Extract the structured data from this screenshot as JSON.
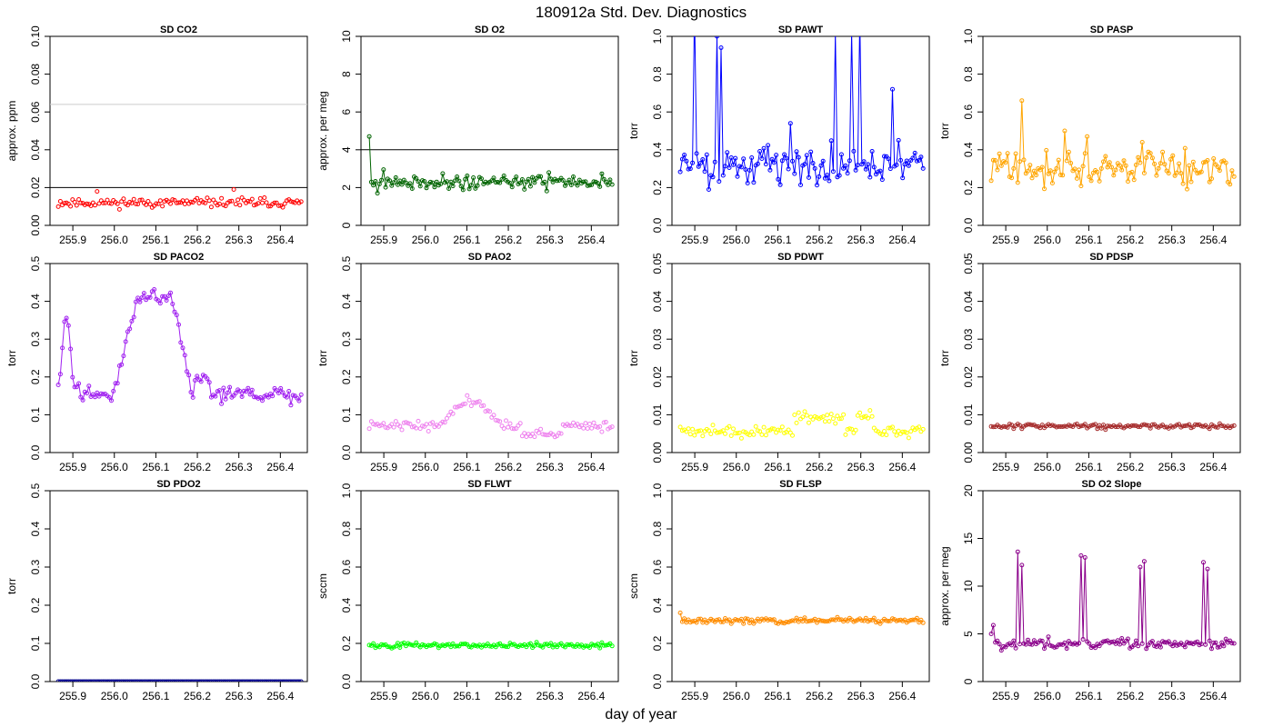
{
  "figure": {
    "title": "180912a   Std. Dev. Diagnostics",
    "xlabel": "day of year"
  },
  "chart_data": [
    {
      "type": "scatter",
      "title": "SD CO2",
      "ylabel": "approx. ppm",
      "color": "#ff0000",
      "xlim": [
        255.845,
        256.465
      ],
      "ylim": [
        0,
        0.1
      ],
      "yticks": [
        0,
        0.02,
        0.04,
        0.06,
        0.08,
        0.1
      ],
      "ytick_labels": [
        "0.00",
        "0.02",
        "0.04",
        "0.06",
        "0.08",
        "0.10"
      ],
      "hlines": [
        {
          "y": 0.02,
          "color": "#000000"
        },
        {
          "y": 0.064,
          "color": "#cccccc"
        }
      ],
      "connect": false,
      "gen": {
        "n": 120,
        "x0": 255.865,
        "x1": 256.45,
        "kind": "flat",
        "base": 0.012,
        "amp": 0.002,
        "seed": 11,
        "extras": [
          [
            255.96,
            0.018
          ],
          [
            256.29,
            0.019
          ]
        ]
      }
    },
    {
      "type": "scatter",
      "title": "SD O2",
      "ylabel": "approx. per meg",
      "color": "#006400",
      "xlim": [
        255.845,
        256.465
      ],
      "ylim": [
        0,
        10
      ],
      "yticks": [
        0,
        2,
        4,
        6,
        8,
        10
      ],
      "ytick_labels": [
        "0",
        "2",
        "4",
        "6",
        "8",
        "10"
      ],
      "hlines": [
        {
          "y": 4,
          "color": "#000000"
        }
      ],
      "connect": true,
      "gen": {
        "n": 120,
        "x0": 255.865,
        "x1": 256.45,
        "kind": "flat",
        "base": 2.3,
        "amp": 0.3,
        "seed": 21,
        "first": 4.7,
        "extras": [
          [
            255.885,
            1.7
          ],
          [
            255.9,
            2.95
          ]
        ]
      }
    },
    {
      "type": "line",
      "title": "SD PAWT",
      "ylabel": "torr",
      "color": "#0000ff",
      "xlim": [
        255.845,
        256.465
      ],
      "ylim": [
        0,
        1
      ],
      "yticks": [
        0,
        0.2,
        0.4,
        0.6,
        0.8,
        1
      ],
      "ytick_labels": [
        "0.0",
        "0.2",
        "0.4",
        "0.6",
        "0.8",
        "1.0"
      ],
      "hlines": [],
      "connect": true,
      "gen": {
        "n": 120,
        "x0": 255.865,
        "x1": 256.45,
        "kind": "spiky",
        "base": 0.32,
        "amp": 0.09,
        "seed": 31,
        "spikes": [
          [
            255.9,
            1.15
          ],
          [
            255.955,
            1.0
          ],
          [
            255.965,
            0.94
          ],
          [
            256.13,
            0.54
          ],
          [
            256.24,
            1.02
          ],
          [
            256.28,
            1.02
          ],
          [
            256.3,
            1.1
          ],
          [
            256.375,
            0.72
          ],
          [
            256.39,
            0.45
          ]
        ]
      }
    },
    {
      "type": "line",
      "title": "SD PASP",
      "ylabel": "torr",
      "color": "#ffa500",
      "xlim": [
        255.845,
        256.465
      ],
      "ylim": [
        0,
        1
      ],
      "yticks": [
        0,
        0.2,
        0.4,
        0.6,
        0.8,
        1
      ],
      "ytick_labels": [
        "0.0",
        "0.2",
        "0.4",
        "0.6",
        "0.8",
        "1.0"
      ],
      "hlines": [],
      "connect": true,
      "gen": {
        "n": 120,
        "x0": 255.865,
        "x1": 256.45,
        "kind": "spiky",
        "base": 0.3,
        "amp": 0.08,
        "seed": 41,
        "spikes": [
          [
            255.94,
            0.66
          ],
          [
            256.04,
            0.5
          ],
          [
            256.095,
            0.47
          ],
          [
            256.23,
            0.44
          ]
        ]
      }
    },
    {
      "type": "line",
      "title": "SD PACO2",
      "ylabel": "torr",
      "color": "#a020f0",
      "xlim": [
        255.845,
        256.465
      ],
      "ylim": [
        0,
        0.5
      ],
      "yticks": [
        0,
        0.1,
        0.2,
        0.3,
        0.4,
        0.5
      ],
      "ytick_labels": [
        "0.0",
        "0.1",
        "0.2",
        "0.3",
        "0.4",
        "0.5"
      ],
      "hlines": [],
      "connect": true,
      "gen": {
        "n": 120,
        "x0": 255.865,
        "x1": 256.45,
        "kind": "paco2",
        "base": 0.15,
        "amp": 0.015,
        "seed": 51
      }
    },
    {
      "type": "scatter",
      "title": "SD PAO2",
      "ylabel": "torr",
      "color": "#ee82ee",
      "xlim": [
        255.845,
        256.465
      ],
      "ylim": [
        0,
        0.5
      ],
      "yticks": [
        0,
        0.1,
        0.2,
        0.3,
        0.4,
        0.5
      ],
      "ytick_labels": [
        "0.0",
        "0.1",
        "0.2",
        "0.3",
        "0.4",
        "0.5"
      ],
      "hlines": [],
      "connect": false,
      "gen": {
        "n": 120,
        "x0": 255.865,
        "x1": 256.45,
        "kind": "pao2",
        "base": 0.07,
        "amp": 0.01,
        "seed": 61
      }
    },
    {
      "type": "scatter",
      "title": "SD PDWT",
      "ylabel": "torr",
      "color": "#ffff00",
      "xlim": [
        255.845,
        256.465
      ],
      "ylim": [
        0,
        0.05
      ],
      "yticks": [
        0,
        0.01,
        0.02,
        0.03,
        0.04,
        0.05
      ],
      "ytick_labels": [
        "0.00",
        "0.01",
        "0.02",
        "0.03",
        "0.04",
        "0.05"
      ],
      "hlines": [],
      "connect": false,
      "gen": {
        "n": 120,
        "x0": 255.865,
        "x1": 256.45,
        "kind": "pdwt",
        "base": 0.0055,
        "amp": 0.0008,
        "seed": 71
      }
    },
    {
      "type": "line",
      "title": "SD PDSP",
      "ylabel": "torr",
      "color": "#a52a2a",
      "xlim": [
        255.845,
        256.465
      ],
      "ylim": [
        0,
        0.05
      ],
      "yticks": [
        0,
        0.01,
        0.02,
        0.03,
        0.04,
        0.05
      ],
      "ytick_labels": [
        "0.00",
        "0.01",
        "0.02",
        "0.03",
        "0.04",
        "0.05"
      ],
      "hlines": [],
      "connect": true,
      "gen": {
        "n": 120,
        "x0": 255.865,
        "x1": 256.45,
        "kind": "flat",
        "base": 0.007,
        "amp": 0.0006,
        "seed": 81
      }
    },
    {
      "type": "line",
      "title": "SD PDO2",
      "ylabel": "torr",
      "color": "#00008b",
      "xlim": [
        255.845,
        256.465
      ],
      "ylim": [
        0,
        0.5
      ],
      "yticks": [
        0,
        0.1,
        0.2,
        0.3,
        0.4,
        0.5
      ],
      "ytick_labels": [
        "0.0",
        "0.1",
        "0.2",
        "0.3",
        "0.4",
        "0.5"
      ],
      "hlines": [],
      "connect": true,
      "gen": {
        "n": 120,
        "x0": 255.865,
        "x1": 256.45,
        "kind": "flat",
        "base": 0.0,
        "amp": 0.0,
        "seed": 91
      }
    },
    {
      "type": "line",
      "title": "SD FLWT",
      "ylabel": "sccm",
      "color": "#00ff00",
      "xlim": [
        255.845,
        256.465
      ],
      "ylim": [
        0,
        1
      ],
      "yticks": [
        0,
        0.2,
        0.4,
        0.6,
        0.8,
        1
      ],
      "ytick_labels": [
        "0.0",
        "0.2",
        "0.4",
        "0.6",
        "0.8",
        "1.0"
      ],
      "hlines": [],
      "connect": true,
      "gen": {
        "n": 120,
        "x0": 255.865,
        "x1": 256.45,
        "kind": "flat",
        "base": 0.19,
        "amp": 0.012,
        "seed": 101
      }
    },
    {
      "type": "line",
      "title": "SD FLSP",
      "ylabel": "sccm",
      "color": "#ff8c00",
      "xlim": [
        255.845,
        256.465
      ],
      "ylim": [
        0,
        1
      ],
      "yticks": [
        0,
        0.2,
        0.4,
        0.6,
        0.8,
        1
      ],
      "ytick_labels": [
        "0.0",
        "0.2",
        "0.4",
        "0.6",
        "0.8",
        "1.0"
      ],
      "hlines": [],
      "connect": true,
      "gen": {
        "n": 120,
        "x0": 255.865,
        "x1": 256.45,
        "kind": "flat",
        "base": 0.32,
        "amp": 0.012,
        "seed": 111,
        "first": 0.36
      }
    },
    {
      "type": "line",
      "title": "SD O2 Slope",
      "ylabel": "approx. per meg",
      "color": "#8b008b",
      "xlim": [
        255.845,
        256.465
      ],
      "ylim": [
        0,
        20
      ],
      "yticks": [
        0,
        5,
        10,
        15,
        20
      ],
      "ytick_labels": [
        "0",
        "5",
        "10",
        "15",
        "20"
      ],
      "hlines": [],
      "connect": true,
      "gen": {
        "n": 120,
        "x0": 255.865,
        "x1": 256.45,
        "kind": "spiky",
        "base": 4.0,
        "amp": 0.5,
        "seed": 121,
        "spikes": [
          [
            255.93,
            13.6
          ],
          [
            255.94,
            12.2
          ],
          [
            256.08,
            13.2
          ],
          [
            256.09,
            13.0
          ],
          [
            256.225,
            12.0
          ],
          [
            256.235,
            12.6
          ],
          [
            256.375,
            12.5
          ],
          [
            256.385,
            11.8
          ]
        ],
        "extras": [
          [
            255.865,
            5.0
          ],
          [
            255.87,
            5.9
          ]
        ]
      }
    }
  ],
  "xaxis": {
    "ticks": [
      255.9,
      256.0,
      256.1,
      256.2,
      256.3,
      256.4
    ],
    "tick_labels": [
      "255.9",
      "256.0",
      "256.1",
      "256.2",
      "256.3",
      "256.4"
    ]
  }
}
